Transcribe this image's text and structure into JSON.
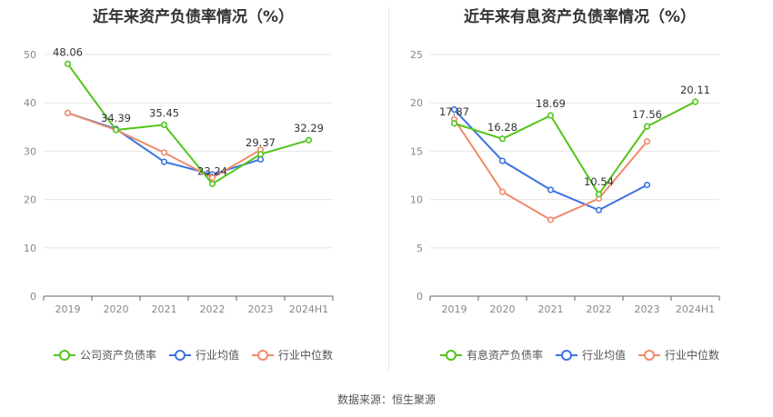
{
  "source": "数据来源：恒生聚源",
  "chart_data": [
    {
      "type": "line",
      "title": "近年来资产负债率情况（%）",
      "categories": [
        "2019",
        "2020",
        "2021",
        "2022",
        "2023",
        "2024H1"
      ],
      "ylim": [
        0,
        50
      ],
      "yticks": [
        0,
        10,
        20,
        30,
        40,
        50
      ],
      "grid": true,
      "legend_position": "bottom",
      "series": [
        {
          "name": "公司资产负债率",
          "color": "#52c41a",
          "values": [
            48.06,
            34.39,
            35.45,
            23.24,
            29.37,
            32.29
          ],
          "labels": true
        },
        {
          "name": "行业均值",
          "color": "#3b73e0",
          "values": [
            37.9,
            34.6,
            27.8,
            25.2,
            28.3,
            null
          ],
          "labels": false
        },
        {
          "name": "行业中位数",
          "color": "#f08a6a",
          "values": [
            37.9,
            34.4,
            29.7,
            24.5,
            30.3,
            null
          ],
          "labels": false
        }
      ]
    },
    {
      "type": "line",
      "title": "近年来有息资产负债率情况（%）",
      "categories": [
        "2019",
        "2020",
        "2021",
        "2022",
        "2023",
        "2024H1"
      ],
      "ylim": [
        0,
        25
      ],
      "yticks": [
        0,
        5,
        10,
        15,
        20,
        25
      ],
      "grid": true,
      "legend_position": "bottom",
      "series": [
        {
          "name": "有息资产负债率",
          "color": "#52c41a",
          "values": [
            17.87,
            16.28,
            18.69,
            10.54,
            17.56,
            20.11
          ],
          "labels": true
        },
        {
          "name": "行业均值",
          "color": "#3b73e0",
          "values": [
            19.3,
            14.0,
            11.0,
            8.9,
            11.5,
            null
          ],
          "labels": false
        },
        {
          "name": "行业中位数",
          "color": "#f08a6a",
          "values": [
            18.3,
            10.8,
            7.9,
            10.1,
            16.0,
            null
          ],
          "labels": false
        }
      ]
    }
  ]
}
